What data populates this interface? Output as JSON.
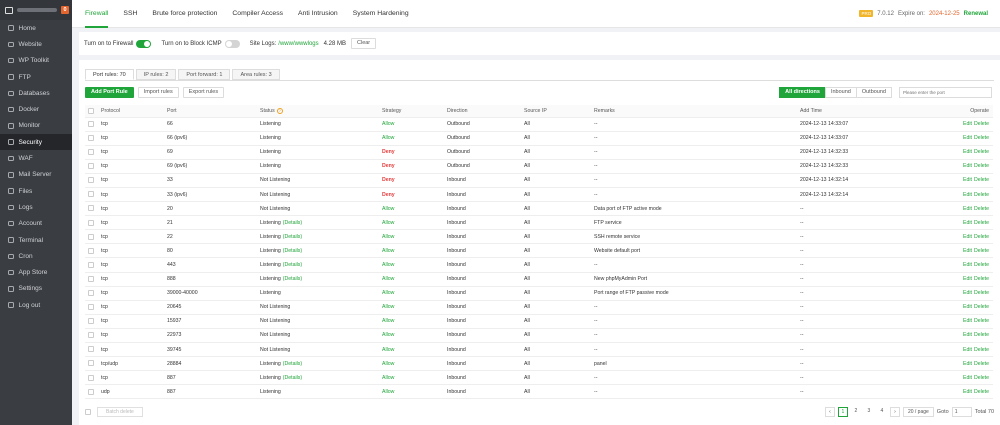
{
  "sidebar": {
    "badge": "0",
    "items": [
      {
        "name": "home",
        "label": "Home"
      },
      {
        "name": "website",
        "label": "Website"
      },
      {
        "name": "wp-toolkit",
        "label": "WP Toolkit"
      },
      {
        "name": "ftp",
        "label": "FTP"
      },
      {
        "name": "databases",
        "label": "Databases"
      },
      {
        "name": "docker",
        "label": "Docker"
      },
      {
        "name": "monitor",
        "label": "Monitor"
      },
      {
        "name": "security",
        "label": "Security",
        "active": true
      },
      {
        "name": "waf",
        "label": "WAF"
      },
      {
        "name": "mail-server",
        "label": "Mail Server"
      },
      {
        "name": "files",
        "label": "Files"
      },
      {
        "name": "logs",
        "label": "Logs"
      },
      {
        "name": "account",
        "label": "Account"
      },
      {
        "name": "terminal",
        "label": "Terminal"
      },
      {
        "name": "cron",
        "label": "Cron"
      },
      {
        "name": "app-store",
        "label": "App Store"
      },
      {
        "name": "settings",
        "label": "Settings"
      },
      {
        "name": "log-out",
        "label": "Log out"
      }
    ]
  },
  "header": {
    "tabs": [
      {
        "name": "firewall",
        "label": "Firewall",
        "active": true
      },
      {
        "name": "ssh",
        "label": "SSH"
      },
      {
        "name": "brute-force-protection",
        "label": "Brute force protection"
      },
      {
        "name": "compiler-access",
        "label": "Compiler Access"
      },
      {
        "name": "anti-intrusion",
        "label": "Anti Intrusion"
      },
      {
        "name": "system-hardening",
        "label": "System Hardening"
      }
    ],
    "pro_badge": "PRO",
    "version": "7.0.12",
    "expire_label": "Expire on:",
    "expire_date": "2024-12-25",
    "renew": "Renewal"
  },
  "settings": {
    "firewall_label": "Turn on to Firewall",
    "icmp_label": "Turn on to Block ICMP",
    "site_logs_label": "Site Logs:",
    "site_logs_path": "/www/wwwlogs",
    "site_logs_size": "4.28 MB",
    "clear_label": "Clear"
  },
  "subtabs": [
    {
      "name": "port-rules",
      "label": "Port rules: 70",
      "active": true
    },
    {
      "name": "ip-rules",
      "label": "IP rules: 2"
    },
    {
      "name": "port-forward",
      "label": "Port forward: 1"
    },
    {
      "name": "area-rules",
      "label": "Area rules: 3"
    }
  ],
  "toolbar": {
    "add_label": "Add Port Rule",
    "import_label": "Import rules",
    "export_label": "Export rules",
    "directions": [
      {
        "name": "all-directions",
        "label": "All directions",
        "active": true
      },
      {
        "name": "inbound",
        "label": "Inbound"
      },
      {
        "name": "outbound",
        "label": "Outbound"
      }
    ],
    "search_placeholder": "Please enter the port"
  },
  "table": {
    "headers": {
      "protocol": "Protocol",
      "port": "Port",
      "status": "Status",
      "strategy": "Strategy",
      "direction": "Direction",
      "source_ip": "Source IP",
      "remarks": "Remarks",
      "add_time": "Add Time",
      "operate": "Operate"
    },
    "edit_label": "Edit",
    "delete_label": "Delete",
    "rows": [
      {
        "protocol": "tcp",
        "port": "66",
        "status": "Listening",
        "details": "",
        "strategy": "Allow",
        "direction": "Outbound",
        "source": "All",
        "remarks": "--",
        "time": "2024-12-13 14:33:07"
      },
      {
        "protocol": "tcp",
        "port": "66 (ipv6)",
        "status": "Listening",
        "details": "",
        "strategy": "Allow",
        "direction": "Outbound",
        "source": "All",
        "remarks": "--",
        "time": "2024-12-13 14:33:07"
      },
      {
        "protocol": "tcp",
        "port": "69",
        "status": "Listening",
        "details": "",
        "strategy": "Deny",
        "direction": "Outbound",
        "source": "All",
        "remarks": "--",
        "time": "2024-12-13 14:32:33"
      },
      {
        "protocol": "tcp",
        "port": "69 (ipv6)",
        "status": "Listening",
        "details": "",
        "strategy": "Deny",
        "direction": "Outbound",
        "source": "All",
        "remarks": "--",
        "time": "2024-12-13 14:32:33"
      },
      {
        "protocol": "tcp",
        "port": "33",
        "status": "Not Listening",
        "details": "",
        "strategy": "Deny",
        "direction": "Inbound",
        "source": "All",
        "remarks": "--",
        "time": "2024-12-13 14:32:14"
      },
      {
        "protocol": "tcp",
        "port": "33 (ipv6)",
        "status": "Not Listening",
        "details": "",
        "strategy": "Deny",
        "direction": "Inbound",
        "source": "All",
        "remarks": "--",
        "time": "2024-12-13 14:32:14"
      },
      {
        "protocol": "tcp",
        "port": "20",
        "status": "Not Listening",
        "details": "",
        "strategy": "Allow",
        "direction": "Inbound",
        "source": "All",
        "remarks": "Data port of FTP active mode",
        "time": "--"
      },
      {
        "protocol": "tcp",
        "port": "21",
        "status": "Listening",
        "details": "(Details)",
        "strategy": "Allow",
        "direction": "Inbound",
        "source": "All",
        "remarks": "FTP service",
        "time": "--"
      },
      {
        "protocol": "tcp",
        "port": "22",
        "status": "Listening",
        "details": "(Details)",
        "strategy": "Allow",
        "direction": "Inbound",
        "source": "All",
        "remarks": "SSH remote service",
        "time": "--"
      },
      {
        "protocol": "tcp",
        "port": "80",
        "status": "Listening",
        "details": "(Details)",
        "strategy": "Allow",
        "direction": "Inbound",
        "source": "All",
        "remarks": "Website default port",
        "time": "--"
      },
      {
        "protocol": "tcp",
        "port": "443",
        "status": "Listening",
        "details": "(Details)",
        "strategy": "Allow",
        "direction": "Inbound",
        "source": "All",
        "remarks": "--",
        "time": "--"
      },
      {
        "protocol": "tcp",
        "port": "888",
        "status": "Listening",
        "details": "(Details)",
        "strategy": "Allow",
        "direction": "Inbound",
        "source": "All",
        "remarks": "New phpMyAdmin Port",
        "time": "--"
      },
      {
        "protocol": "tcp",
        "port": "39000-40000",
        "status": "Listening",
        "details": "",
        "strategy": "Allow",
        "direction": "Inbound",
        "source": "All",
        "remarks": "Port range of FTP passive mode",
        "time": "--"
      },
      {
        "protocol": "tcp",
        "port": "20645",
        "status": "Not Listening",
        "details": "",
        "strategy": "Allow",
        "direction": "Inbound",
        "source": "All",
        "remarks": "--",
        "time": "--"
      },
      {
        "protocol": "tcp",
        "port": "15937",
        "status": "Not Listening",
        "details": "",
        "strategy": "Allow",
        "direction": "Inbound",
        "source": "All",
        "remarks": "--",
        "time": "--"
      },
      {
        "protocol": "tcp",
        "port": "22973",
        "status": "Not Listening",
        "details": "",
        "strategy": "Allow",
        "direction": "Inbound",
        "source": "All",
        "remarks": "--",
        "time": "--"
      },
      {
        "protocol": "tcp",
        "port": "39745",
        "status": "Not Listening",
        "details": "",
        "strategy": "Allow",
        "direction": "Inbound",
        "source": "All",
        "remarks": "--",
        "time": "--"
      },
      {
        "protocol": "tcp/udp",
        "port": "28884",
        "status": "Listening",
        "details": "(Details)",
        "strategy": "Allow",
        "direction": "Inbound",
        "source": "All",
        "remarks": "panel",
        "time": "--"
      },
      {
        "protocol": "tcp",
        "port": "887",
        "status": "Listening",
        "details": "(Details)",
        "strategy": "Allow",
        "direction": "Inbound",
        "source": "All",
        "remarks": "--",
        "time": "--"
      },
      {
        "protocol": "udp",
        "port": "887",
        "status": "Listening",
        "details": "",
        "strategy": "Allow",
        "direction": "Inbound",
        "source": "All",
        "remarks": "--",
        "time": "--"
      }
    ]
  },
  "footer": {
    "batch_label": "Batch delete",
    "prev": "‹",
    "pages": [
      "1",
      "2",
      "3",
      "4"
    ],
    "current_page": "1",
    "next": "›",
    "per_page": "20 / page",
    "goto_label": "Goto",
    "goto_value": "1",
    "total": "Total 70"
  }
}
